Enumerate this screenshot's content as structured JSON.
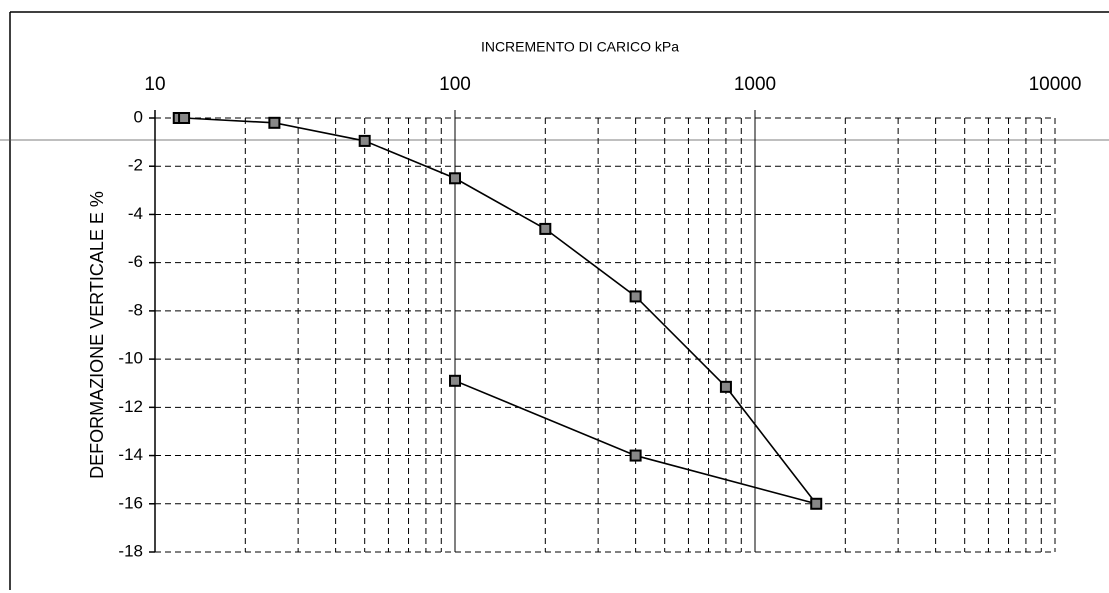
{
  "chart_data": {
    "type": "line",
    "xlabel": "INCREMENTO DI CARICO  kPa",
    "ylabel": "DEFORMAZIONE VERTICALE  E %",
    "x": [
      12,
      12.5,
      25,
      50,
      100,
      200,
      400,
      800,
      1600,
      400,
      100
    ],
    "series": [
      {
        "color": "#000000",
        "values": [
          0,
          0,
          -0.2,
          -0.95,
          -2.5,
          -4.6,
          -7.4,
          -11.15,
          -16.0,
          -14.0,
          -10.9
        ]
      }
    ],
    "xscale": "log",
    "xlim": [
      10,
      10000
    ],
    "xticks": [
      10,
      100,
      1000,
      10000
    ],
    "xminorticks": [
      20,
      30,
      40,
      50,
      60,
      70,
      80,
      90,
      200,
      300,
      400,
      500,
      600,
      700,
      800,
      900,
      2000,
      3000,
      4000,
      5000,
      6000,
      7000,
      8000,
      9000
    ],
    "ylim": [
      -18,
      0
    ],
    "yticks": [
      0,
      -2,
      -4,
      -6,
      -8,
      -10,
      -12,
      -14,
      -16,
      -18
    ],
    "grid": true
  }
}
